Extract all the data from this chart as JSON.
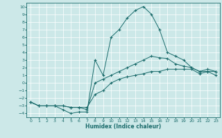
{
  "xlabel": "Humidex (Indice chaleur)",
  "background_color": "#cce8e8",
  "grid_color": "#ffffff",
  "line_color": "#1a6b6b",
  "xlim": [
    -0.5,
    23.5
  ],
  "ylim": [
    -4.5,
    10.5
  ],
  "xticks": [
    0,
    1,
    2,
    3,
    4,
    5,
    6,
    7,
    8,
    9,
    10,
    11,
    12,
    13,
    14,
    15,
    16,
    17,
    18,
    19,
    20,
    21,
    22,
    23
  ],
  "yticks": [
    -4,
    -3,
    -2,
    -1,
    0,
    1,
    2,
    3,
    4,
    5,
    6,
    7,
    8,
    9,
    10
  ],
  "series": [
    {
      "x": [
        0,
        1,
        2,
        3,
        4,
        5,
        6,
        7,
        8,
        9,
        10,
        11,
        12,
        13,
        14,
        15,
        16,
        17,
        18,
        19,
        20,
        21,
        22,
        23
      ],
      "y": [
        -2.5,
        -3,
        -3,
        -3,
        -3.5,
        -4,
        -3.8,
        -3.8,
        3,
        1,
        6,
        7,
        8.5,
        9.5,
        10,
        9,
        7,
        4,
        3.5,
        3.0,
        2.0,
        1.5,
        1.5,
        1.0
      ]
    },
    {
      "x": [
        0,
        1,
        2,
        3,
        4,
        5,
        6,
        7,
        8,
        9,
        10,
        11,
        12,
        13,
        14,
        15,
        16,
        17,
        18,
        19,
        20,
        21,
        22,
        23
      ],
      "y": [
        -2.5,
        -3,
        -3,
        -3,
        -3,
        -3.2,
        -3.2,
        -3.5,
        0,
        0.5,
        1,
        1.5,
        2,
        2.5,
        3,
        3.5,
        3.3,
        3.2,
        2.5,
        2.2,
        2.0,
        1.5,
        1.8,
        1.5
      ]
    },
    {
      "x": [
        0,
        1,
        2,
        3,
        4,
        5,
        6,
        7,
        8,
        9,
        10,
        11,
        12,
        13,
        14,
        15,
        16,
        17,
        18,
        19,
        20,
        21,
        22,
        23
      ],
      "y": [
        -2.5,
        -3,
        -3,
        -3,
        -3,
        -3.2,
        -3.2,
        -3.2,
        -1.5,
        -1,
        0,
        0.5,
        0.8,
        1.0,
        1.2,
        1.5,
        1.5,
        1.8,
        1.8,
        1.8,
        1.8,
        1.2,
        1.5,
        1.5
      ]
    }
  ]
}
